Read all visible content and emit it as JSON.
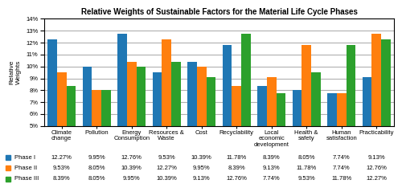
{
  "chart_data": {
    "type": "bar",
    "title": "Relative Weights of Sustainable Factors for the Material Life Cycle Phases",
    "ylabel": "Relative\nWeights",
    "categories": [
      "Climate\nchange",
      "Pollution",
      "Energy\nConsumption",
      "Resources &\nWaste",
      "Cost",
      "Recyclability",
      "Local\neconomic\ndevelopment",
      "Health &\nsafety",
      "Human\nsatisfaction",
      "Practicability"
    ],
    "series": [
      {
        "name": "Phase I",
        "values": [
          12.27,
          9.95,
          12.76,
          9.53,
          10.39,
          11.78,
          8.39,
          8.05,
          7.74,
          9.13
        ],
        "value_labels": [
          "12.27%",
          "9.95%",
          "12.76%",
          "9.53%",
          "10.39%",
          "11.78%",
          "8.39%",
          "8.05%",
          "7.74%",
          "9.13%"
        ]
      },
      {
        "name": "Phase II",
        "values": [
          9.53,
          8.05,
          10.39,
          12.27,
          9.95,
          8.39,
          9.13,
          11.78,
          7.74,
          12.76
        ],
        "value_labels": [
          "9.53%",
          "8.05%",
          "10.39%",
          "12.27%",
          "9.95%",
          "8.39%",
          "9.13%",
          "11.78%",
          "7.74%",
          "12.76%"
        ]
      },
      {
        "name": "Phase III",
        "values": [
          8.39,
          8.05,
          9.95,
          10.39,
          9.13,
          12.76,
          7.74,
          9.53,
          11.78,
          12.27
        ],
        "value_labels": [
          "8.39%",
          "8.05%",
          "9.95%",
          "10.39%",
          "9.13%",
          "12.76%",
          "7.74%",
          "9.53%",
          "11.78%",
          "12.27%"
        ]
      }
    ],
    "ylim": [
      5,
      14
    ],
    "yticks": [
      {
        "value": 5,
        "label": "5%"
      },
      {
        "value": 6,
        "label": "6%"
      },
      {
        "value": 7,
        "label": "7%"
      },
      {
        "value": 8,
        "label": "8%"
      },
      {
        "value": 9,
        "label": "9%"
      },
      {
        "value": 10,
        "label": "10%"
      },
      {
        "value": 11,
        "label": "11%"
      },
      {
        "value": 12,
        "label": "12%"
      },
      {
        "value": 13,
        "label": "13%"
      },
      {
        "value": 14,
        "label": "14%"
      }
    ],
    "grid": true
  }
}
